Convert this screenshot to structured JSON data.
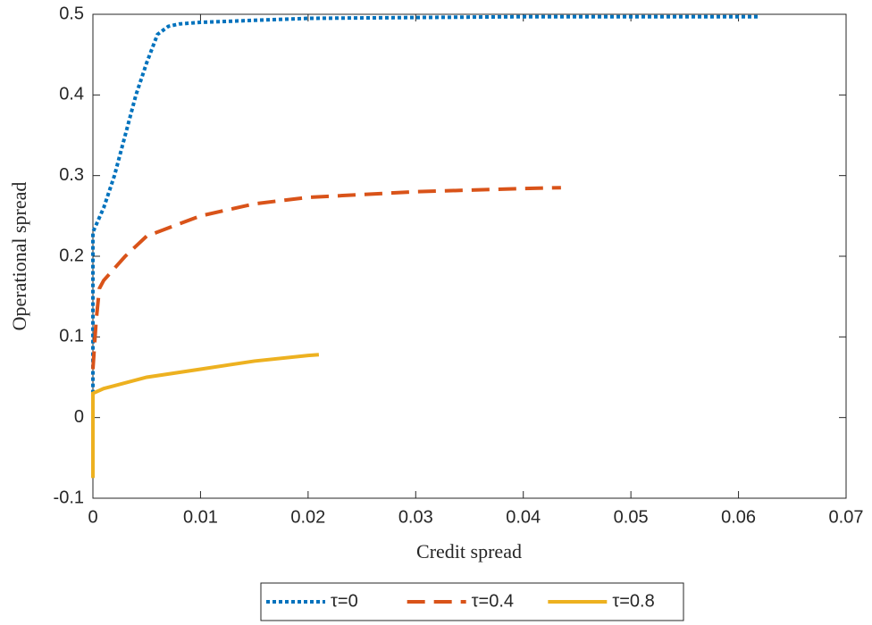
{
  "chart_data": {
    "type": "line",
    "xlabel": "Credit spread",
    "ylabel": "Operational spread",
    "xlim": [
      0,
      0.07
    ],
    "xticks": [
      0,
      0.01,
      0.02,
      0.03,
      0.04,
      0.05,
      0.06,
      0.07
    ],
    "ylim": [
      -0.1,
      0.5
    ],
    "yticks": [
      -0.1,
      0,
      0.1,
      0.2,
      0.3,
      0.4,
      0.5
    ],
    "legend": "bottom",
    "series": [
      {
        "name": "τ=0",
        "color": "#0072BD",
        "style": "dotted",
        "x": [
          0,
          0,
          0.0005,
          0.001,
          0.002,
          0.003,
          0.004,
          0.005,
          0.006,
          0.007,
          0.008,
          0.01,
          0.02,
          0.03,
          0.04,
          0.05,
          0.062
        ],
        "values": [
          0.03,
          0.23,
          0.245,
          0.26,
          0.3,
          0.35,
          0.4,
          0.44,
          0.475,
          0.485,
          0.488,
          0.49,
          0.495,
          0.496,
          0.497,
          0.497,
          0.497
        ]
      },
      {
        "name": "τ=0.4",
        "color": "#D95319",
        "style": "dashed",
        "x": [
          0,
          0.0003,
          0.0006,
          0.001,
          0.003,
          0.005,
          0.01,
          0.015,
          0.02,
          0.03,
          0.04,
          0.0435
        ],
        "values": [
          0.06,
          0.12,
          0.16,
          0.17,
          0.2,
          0.225,
          0.25,
          0.265,
          0.273,
          0.28,
          0.284,
          0.285
        ]
      },
      {
        "name": "τ=0.8",
        "color": "#EDB120",
        "style": "solid",
        "x": [
          0,
          0,
          0.001,
          0.005,
          0.01,
          0.015,
          0.02,
          0.021
        ],
        "values": [
          -0.075,
          0.03,
          0.036,
          0.05,
          0.06,
          0.07,
          0.077,
          0.078
        ]
      }
    ]
  }
}
